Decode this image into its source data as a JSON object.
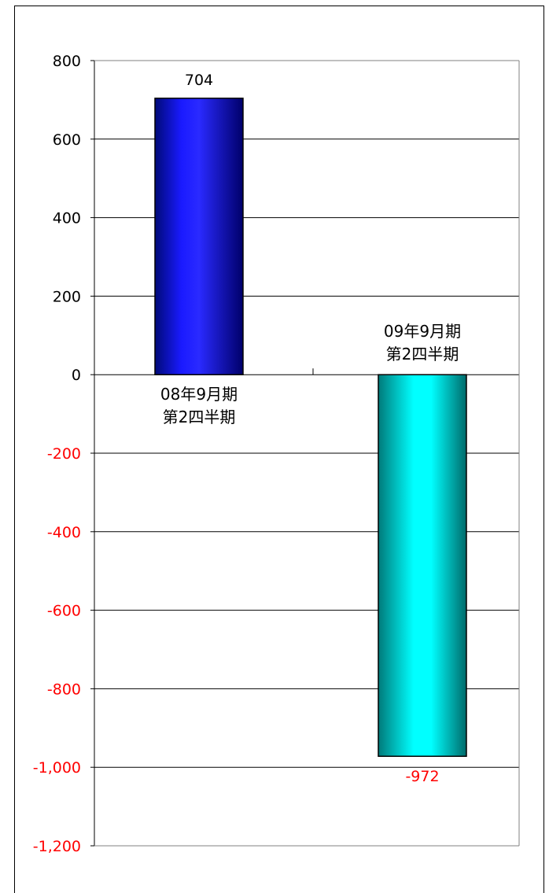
{
  "chart_data": {
    "type": "bar",
    "categories": [
      "08年9月期\n第2四半期",
      "09年9月期\n第2四半期"
    ],
    "values": [
      704,
      -972
    ],
    "data_labels": [
      "704",
      "-972"
    ],
    "ylim": [
      -1200,
      800
    ],
    "ytick_step": 200,
    "ytick_labels": [
      "800",
      "600",
      "400",
      "200",
      "0",
      "-200",
      "-400",
      "-600",
      "-800",
      "-1,000",
      "-1,200"
    ],
    "grid": true,
    "legend": "none",
    "colors": {
      "bar_positive": "#1010ee",
      "bar_negative": "#00e8e8",
      "negative_text": "#ff0000",
      "positive_text": "#000000",
      "gridline": "#000000",
      "plot_border": "#808080"
    }
  }
}
